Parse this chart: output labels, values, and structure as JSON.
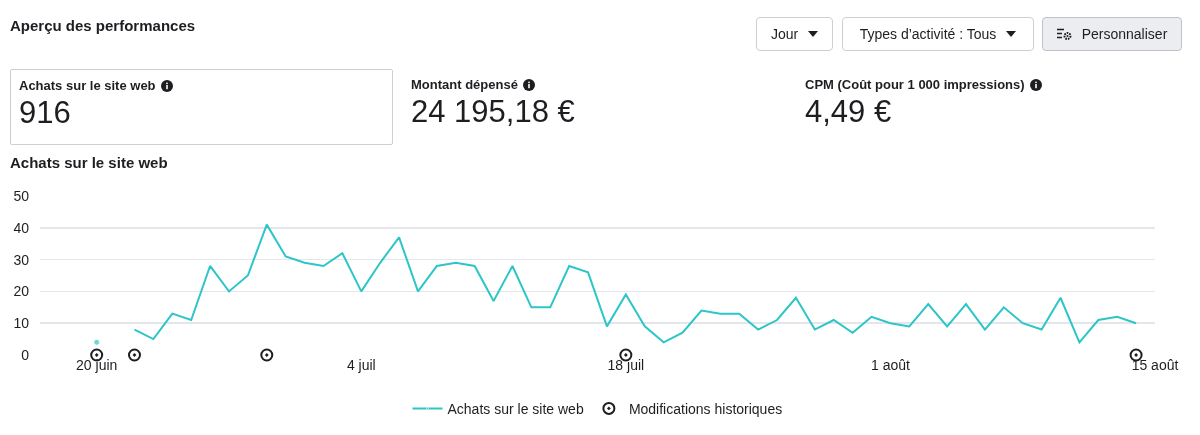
{
  "chart_data": [
    {
      "type": "other",
      "title": "Aperçu des performances",
      "annotations": [
        "Jour",
        "Types d’activité : Tous",
        "Personnaliser",
        "Achats sur le site web",
        "916",
        "Montant dépensé",
        "24 195,18 €",
        "CPM (Coût pour 1 000 impressions)",
        "4,49 €"
      ]
    },
    {
      "type": "line",
      "title": "Achats sur le site web",
      "xlim": [
        "--06-17",
        "--08-15"
      ],
      "xticks": [
        {
          "value": "--06-20",
          "label": "20 juin"
        },
        {
          "value": "--07-04",
          "label": "4 juil"
        },
        {
          "value": "--07-18",
          "label": "18 juil"
        },
        {
          "value": "--08-01",
          "label": "1 août"
        },
        {
          "value": "--08-15",
          "label": "15 août"
        }
      ],
      "ylim": [
        0,
        50
      ],
      "yticks": [
        0,
        10,
        20,
        30,
        40,
        50
      ],
      "grid": "y",
      "legend": "bottom",
      "marker": "none",
      "line_style": "solid",
      "x": [
        "--06-20",
        "--06-21",
        "--06-22",
        "--06-23",
        "--06-24",
        "--06-25",
        "--06-26",
        "--06-27",
        "--06-28",
        "--06-29",
        "--06-30",
        "--07-01",
        "--07-02",
        "--07-03",
        "--07-04",
        "--07-05",
        "--07-06",
        "--07-07",
        "--07-08",
        "--07-09",
        "--07-10",
        "--07-11",
        "--07-12",
        "--07-13",
        "--07-14",
        "--07-15",
        "--07-16",
        "--07-17",
        "--07-18",
        "--07-19",
        "--07-20",
        "--07-21",
        "--07-22",
        "--07-23",
        "--07-24",
        "--07-25",
        "--07-26",
        "--07-27",
        "--07-28",
        "--07-29",
        "--07-30",
        "--07-31",
        "--08-01",
        "--08-02",
        "--08-03",
        "--08-04",
        "--08-05",
        "--08-06",
        "--08-07",
        "--08-08",
        "--08-09",
        "--08-10",
        "--08-11",
        "--08-12",
        "--08-13",
        "--08-14"
      ],
      "series": [
        {
          "name": "Achats sur le site web",
          "color": "#2ec5c8",
          "values": [
            4,
            null,
            8,
            5,
            13,
            11,
            28,
            20,
            25,
            41,
            31,
            29,
            28,
            32,
            20,
            29,
            37,
            20,
            28,
            29,
            28,
            17,
            28,
            15,
            15,
            28,
            26,
            9,
            19,
            9,
            4,
            7,
            14,
            13,
            13,
            8,
            11,
            18,
            8,
            11,
            7,
            12,
            10,
            9,
            16,
            9,
            16,
            8,
            15,
            10,
            8,
            18,
            4,
            11,
            12,
            10
          ]
        },
        {
          "name": "Modifications historiques",
          "type": "scatter",
          "marker": "circle",
          "color": "#1c1e21",
          "x": [
            "--06-20",
            "--06-22",
            "--06-29",
            "--07-18",
            "--08-14"
          ],
          "values": [
            0,
            0,
            0,
            0,
            0
          ]
        }
      ]
    }
  ]
}
